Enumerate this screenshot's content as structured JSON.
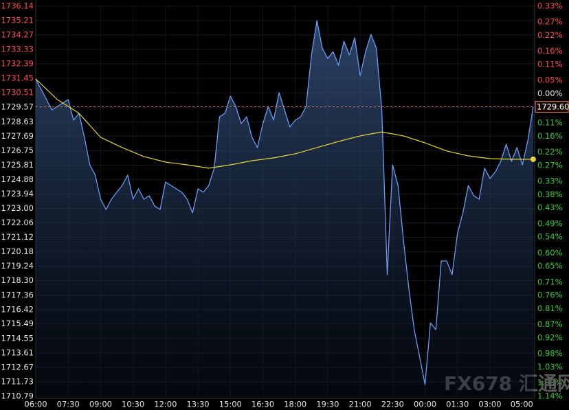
{
  "chart_data": {
    "type": "line",
    "watermark": "FX678 汇通网",
    "xlim": [
      0,
      1384
    ],
    "xticks": [
      {
        "value": 0,
        "label": "06:00"
      },
      {
        "value": 90,
        "label": "07:30"
      },
      {
        "value": 180,
        "label": "09:00"
      },
      {
        "value": 270,
        "label": "10:30"
      },
      {
        "value": 360,
        "label": "12:00"
      },
      {
        "value": 450,
        "label": "13:30"
      },
      {
        "value": 540,
        "label": "15:00"
      },
      {
        "value": 630,
        "label": "16:30"
      },
      {
        "value": 720,
        "label": "18:00"
      },
      {
        "value": 810,
        "label": "19:30"
      },
      {
        "value": 900,
        "label": "21:00"
      },
      {
        "value": 990,
        "label": "22:30"
      },
      {
        "value": 1080,
        "label": "00:00"
      },
      {
        "value": 1170,
        "label": "01:30"
      },
      {
        "value": 1260,
        "label": "03:00"
      },
      {
        "value": 1380,
        "label": "05:00"
      }
    ],
    "ylim": [
      1710.79,
      1736.14
    ],
    "yticks": [
      1736.14,
      1735.21,
      1734.27,
      1733.33,
      1732.39,
      1731.45,
      1730.51,
      1729.57,
      1728.63,
      1727.69,
      1726.75,
      1725.81,
      1724.88,
      1723.94,
      {
        "value": 1723,
        "label": "1723.00"
      },
      1722.06,
      1721.12,
      1720.18,
      1719.24,
      {
        "value": 1718.3,
        "label": "1718.30"
      },
      1717.36,
      1716.42,
      1715.49,
      1714.55,
      1713.61,
      1712.67,
      1711.73,
      1710.79
    ],
    "y2lim": [
      -1.14,
      0.33
    ],
    "y2ticks": [
      {
        "value": 0.33,
        "label": "0.33%"
      },
      {
        "value": 0.27,
        "label": "0.27%"
      },
      {
        "value": 0.22,
        "label": "0.22%"
      },
      {
        "value": 0.16,
        "label": "0.16%"
      },
      {
        "value": 0.11,
        "label": "0.11%"
      },
      {
        "value": 0.05,
        "label": "0.05%"
      },
      {
        "value": 0,
        "label": "0.00%"
      },
      {
        "value": -0.05,
        "label": "0.05%"
      },
      {
        "value": -0.11,
        "label": "0.11%"
      },
      {
        "value": -0.16,
        "label": "0.16%"
      },
      {
        "value": -0.22,
        "label": "0.22%"
      },
      {
        "value": -0.27,
        "label": "0.27%"
      },
      {
        "value": -0.33,
        "label": "0.33%"
      },
      {
        "value": -0.38,
        "label": "0.38%"
      },
      {
        "value": -0.43,
        "label": "0.43%"
      },
      {
        "value": -0.49,
        "label": "0.49%"
      },
      {
        "value": -0.54,
        "label": "0.54%"
      },
      {
        "value": -0.6,
        "label": "0.60%"
      },
      {
        "value": -0.65,
        "label": "0.65%"
      },
      {
        "value": -0.71,
        "label": "0.71%"
      },
      {
        "value": -0.76,
        "label": "0.76%"
      },
      {
        "value": -0.81,
        "label": "0.81%"
      },
      {
        "value": -0.87,
        "label": "0.87%"
      },
      {
        "value": -0.92,
        "label": "0.92%"
      },
      {
        "value": -0.98,
        "label": "0.98%"
      },
      {
        "value": -1.03,
        "label": "1.03%"
      },
      {
        "value": -1.09,
        "label": "1.09%"
      },
      {
        "value": -1.14,
        "label": "1.14%"
      }
    ],
    "up_color": "#ff4b4b",
    "down_color": "#33cc33",
    "neutral_color": "#e6e6e6",
    "grid": true,
    "reference_line": {
      "value": 1729.6,
      "label": "1729.60",
      "color": "#d9794f"
    },
    "series": [
      {
        "color": "#6a9cf5",
        "area": true,
        "x": [
          0,
          15,
          30,
          45,
          60,
          75,
          90,
          105,
          120,
          135,
          150,
          165,
          180,
          195,
          210,
          225,
          240,
          255,
          270,
          285,
          300,
          315,
          330,
          345,
          360,
          375,
          390,
          405,
          420,
          435,
          450,
          465,
          480,
          495,
          510,
          525,
          540,
          555,
          570,
          585,
          600,
          615,
          630,
          645,
          660,
          675,
          690,
          705,
          720,
          735,
          750,
          765,
          780,
          795,
          810,
          825,
          840,
          855,
          870,
          885,
          900,
          915,
          930,
          945,
          960,
          975,
          990,
          1005,
          1020,
          1035,
          1050,
          1065,
          1080,
          1095,
          1110,
          1125,
          1140,
          1155,
          1170,
          1185,
          1200,
          1215,
          1230,
          1245,
          1260,
          1275,
          1290,
          1305,
          1320,
          1335,
          1350,
          1365,
          1380
        ],
        "values": [
          1731.41,
          1730.74,
          1730.07,
          1729.4,
          1729.62,
          1729.85,
          1730.07,
          1728.73,
          1729.18,
          1727.62,
          1725.83,
          1725.16,
          1723.6,
          1722.93,
          1723.6,
          1724.05,
          1724.49,
          1725.16,
          1723.6,
          1724.27,
          1723.6,
          1723.82,
          1723.15,
          1722.93,
          1724.71,
          1724.49,
          1724.27,
          1724.05,
          1723.6,
          1722.71,
          1724.27,
          1724.05,
          1724.49,
          1725.61,
          1728.95,
          1729.18,
          1730.29,
          1729.62,
          1728.51,
          1728.95,
          1727.62,
          1726.95,
          1728.51,
          1729.62,
          1728.73,
          1730.52,
          1729.4,
          1728.29,
          1728.73,
          1728.95,
          1729.62,
          1732.97,
          1735.2,
          1733.41,
          1732.74,
          1733.18,
          1732.3,
          1733.86,
          1732.97,
          1734.09,
          1731.63,
          1733.18,
          1734.31,
          1733.41,
          1729.4,
          1718.69,
          1725.83,
          1724.49,
          1720.92,
          1717.8,
          1715.12,
          1713.33,
          1711.55,
          1715.56,
          1715.12,
          1719.58,
          1719.58,
          1718.69,
          1721.37,
          1722.71,
          1724.49,
          1723.82,
          1723.6,
          1725.61,
          1724.94,
          1725.38,
          1726.05,
          1727.17,
          1726.05,
          1726.95,
          1725.83,
          1727.39,
          1729.6
        ]
      },
      {
        "color": "#e6d43a",
        "end_dot": true,
        "x": [
          0,
          60,
          120,
          180,
          240,
          300,
          360,
          420,
          480,
          540,
          600,
          660,
          720,
          780,
          840,
          900,
          960,
          1020,
          1080,
          1140,
          1200,
          1260,
          1320,
          1380
        ],
        "values": [
          1731.41,
          1730.07,
          1729.18,
          1727.62,
          1726.95,
          1726.37,
          1726.01,
          1725.83,
          1725.61,
          1725.83,
          1726.1,
          1726.28,
          1726.55,
          1726.95,
          1727.35,
          1727.71,
          1727.97,
          1727.71,
          1727.26,
          1726.73,
          1726.41,
          1726.23,
          1726.19,
          1726.19
        ]
      }
    ]
  }
}
